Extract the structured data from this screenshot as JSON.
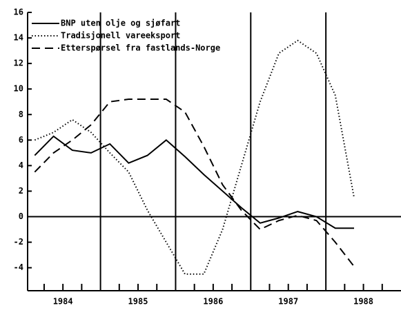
{
  "chart_data": {
    "type": "line",
    "x": [
      1984.125,
      1984.375,
      1984.625,
      1984.875,
      1985.125,
      1985.375,
      1985.625,
      1985.875,
      1986.125,
      1986.375,
      1986.625,
      1986.875,
      1987.125,
      1987.375,
      1987.625,
      1987.875,
      1988.125,
      1988.375
    ],
    "series": [
      {
        "name": "BNP uten olje og sjøfart",
        "color": "#000",
        "dash": "solid",
        "values": [
          4.8,
          6.3,
          5.2,
          5.0,
          5.7,
          4.2,
          4.8,
          6.0,
          4.7,
          3.3,
          2.0,
          0.7,
          -0.5,
          -0.1,
          0.4,
          0.0,
          -0.9,
          -0.9
        ]
      },
      {
        "name": "Tradisjonell vareeksport",
        "color": "#000",
        "dash": "dotted",
        "values": [
          6.0,
          6.6,
          7.6,
          6.6,
          5.0,
          3.5,
          0.5,
          -2.0,
          -4.5,
          -4.5,
          -1.0,
          4.0,
          9.0,
          12.8,
          13.8,
          12.8,
          9.5,
          1.5
        ]
      },
      {
        "name": "Etterspørsel fra fastlands-Norge",
        "color": "#000",
        "dash": "dashed",
        "values": [
          3.5,
          5.0,
          6.0,
          7.2,
          9.0,
          9.2,
          9.2,
          9.2,
          8.2,
          5.5,
          2.5,
          0.5,
          -1.0,
          -0.3,
          0.1,
          -0.3,
          -2.0,
          -3.9
        ]
      }
    ],
    "xlim": [
      1984.03,
      1989
    ],
    "xticks": [
      {
        "value": 1984.5,
        "label": "1984"
      },
      {
        "value": 1985.5,
        "label": "1985"
      },
      {
        "value": 1986.5,
        "label": "1986"
      },
      {
        "value": 1987.5,
        "label": "1987"
      },
      {
        "value": 1988.5,
        "label": "1988"
      }
    ],
    "xgrid": [
      1985,
      1986,
      1987,
      1988
    ],
    "xminorticks": [
      1984.25,
      1984.5,
      1984.75,
      1985.25,
      1985.5,
      1985.75,
      1986.25,
      1986.5,
      1986.75,
      1987.25,
      1987.5,
      1987.75,
      1988.25,
      1988.5,
      1988.75
    ],
    "ylim": [
      -5.8,
      16
    ],
    "yticks": [
      -4,
      -2,
      0,
      2,
      4,
      6,
      8,
      10,
      12,
      14,
      16
    ],
    "legend": "top-left"
  }
}
